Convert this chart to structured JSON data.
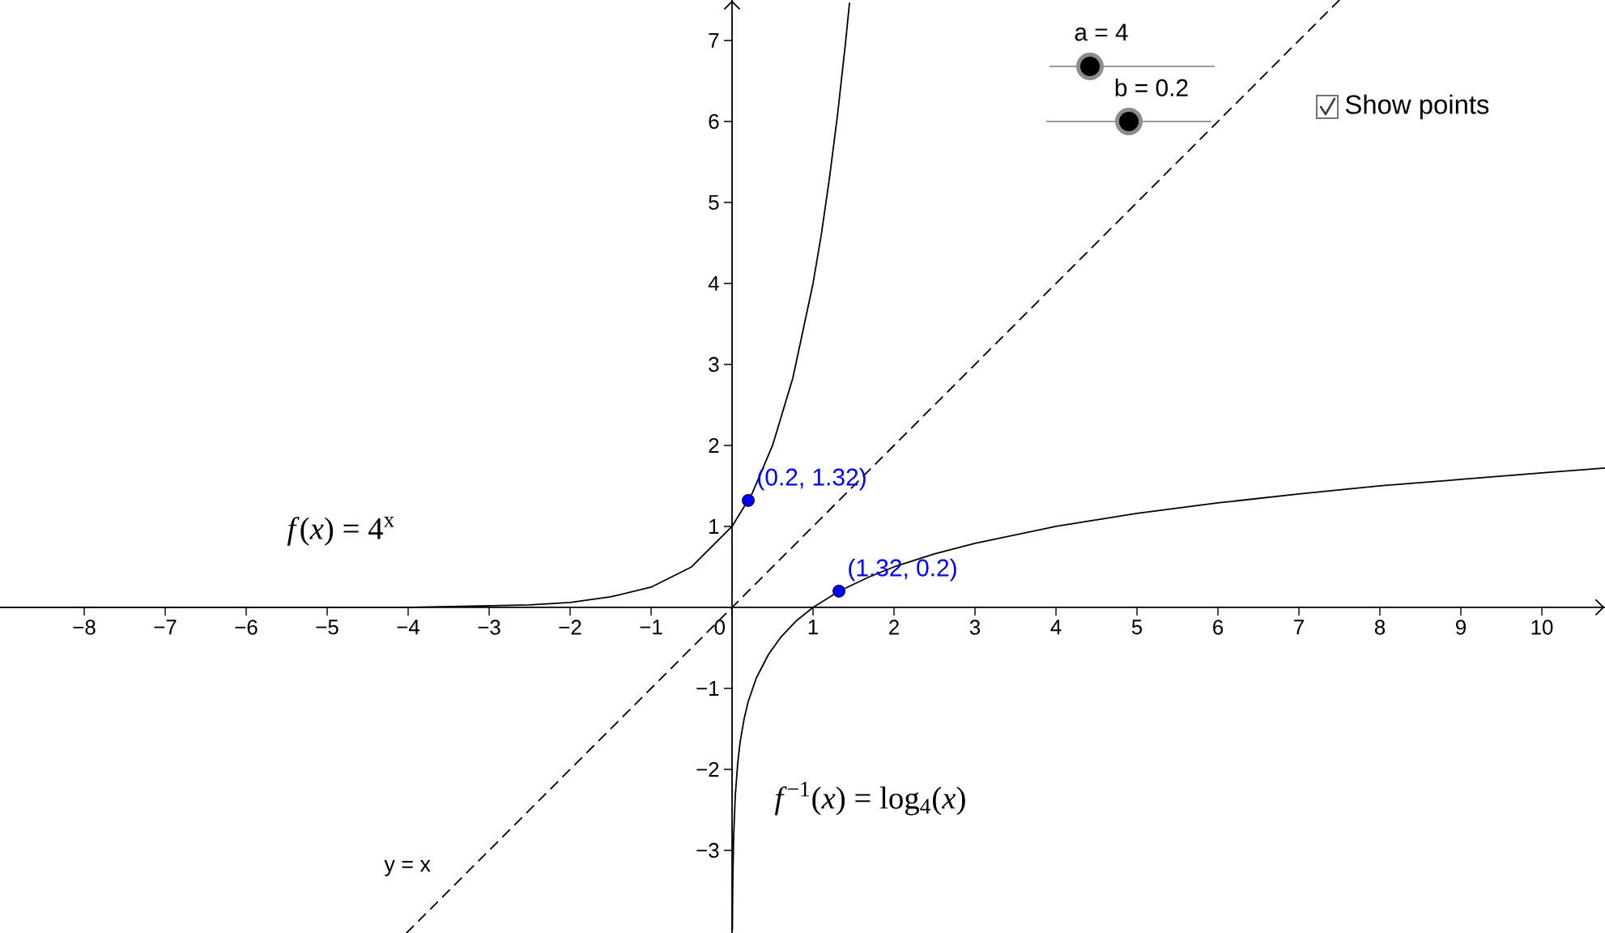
{
  "chart_data": {
    "type": "line",
    "xlim": [
      -9.04,
      10.78
    ],
    "ylim": [
      -4.02,
      7.5
    ],
    "xticks": [
      {
        "value": -8,
        "label": "−8"
      },
      {
        "value": -7,
        "label": "−7"
      },
      {
        "value": -6,
        "label": "−6"
      },
      {
        "value": -5,
        "label": "−5"
      },
      {
        "value": -4,
        "label": "−4"
      },
      {
        "value": -3,
        "label": "−3"
      },
      {
        "value": -2,
        "label": "−2"
      },
      {
        "value": -1,
        "label": "−1"
      },
      0,
      1,
      2,
      3,
      4,
      5,
      6,
      7,
      8,
      9,
      10
    ],
    "yticks": [
      {
        "value": -3,
        "label": "−3"
      },
      {
        "value": -2,
        "label": "−2"
      },
      {
        "value": -1,
        "label": "−1"
      },
      1,
      2,
      3,
      4,
      5,
      6,
      7
    ],
    "marker": "none",
    "series": [
      {
        "name": "*f*(*x*) = 4$^{x}$",
        "color": "#000000",
        "x": [
          -9.04,
          -6,
          -4,
          -3,
          -2.5,
          -2,
          -1.5,
          -1,
          -0.5,
          0,
          0.25,
          0.5,
          0.75,
          1,
          1.1,
          1.2,
          1.3,
          1.4,
          1.45
        ],
        "values": [
          0,
          0,
          0,
          0.02,
          0.03,
          0.06,
          0.13,
          0.25,
          0.5,
          1,
          1.41,
          2,
          2.83,
          4,
          4.59,
          5.28,
          6.06,
          6.96,
          7.46
        ]
      },
      {
        "name": "*f*$^{−1}$(*x*) = log$_{4}$(*x*)",
        "color": "#000000",
        "x": [
          0.004,
          0.006,
          0.01,
          0.02,
          0.04,
          0.07,
          0.1,
          0.15,
          0.2,
          0.3,
          0.45,
          0.6,
          0.8,
          1,
          1.32,
          1.7,
          2,
          2.5,
          3,
          4,
          5,
          6,
          7,
          8,
          9,
          10,
          10.78
        ],
        "values": [
          -3.98,
          -3.69,
          -3.32,
          -2.82,
          -2.32,
          -1.92,
          -1.66,
          -1.37,
          -1.16,
          -0.87,
          -0.58,
          -0.37,
          -0.16,
          0,
          0.2,
          0.38,
          0.5,
          0.66,
          0.79,
          1,
          1.16,
          1.29,
          1.4,
          1.5,
          1.58,
          1.66,
          1.72
        ]
      },
      {
        "name": "y = x",
        "color": "#000000",
        "line_style": "dashed",
        "x": [
          -4.02,
          7.5
        ],
        "values": [
          -4.02,
          7.5
        ]
      },
      {
        "type": "scatter",
        "color": "#0000ff",
        "marker": "circle",
        "x": [
          0.2,
          1.32
        ],
        "values": [
          1.32,
          0.2
        ],
        "value_labels": [
          "(0.2, 1.32)",
          "(1.32, 0.2)"
        ]
      }
    ],
    "annotations": [
      "a = 4",
      "b = 0.2",
      "Show points"
    ]
  }
}
